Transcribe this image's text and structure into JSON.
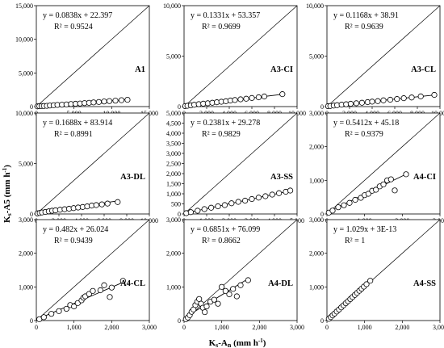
{
  "figure": {
    "ylabel_main": "K",
    "ylabel_sub": "s",
    "ylabel_rest": "-A5 (mm h",
    "ylabel_sup": "-1",
    "ylabel_end": ")",
    "xlabel_main": "K",
    "xlabel_sub": "s",
    "xlabel_mid": "-A",
    "xlabel_sub2": "n",
    "xlabel_rest": " (mm h",
    "xlabel_sup": "-1",
    "xlabel_end": ")"
  },
  "chart_data": [
    {
      "type": "scatter",
      "label": "A1",
      "equation": "y = 0.0838x + 22.397",
      "r2": "R² = 0.9524",
      "slope": 0.0838,
      "intercept": 22.397,
      "xlim": [
        0,
        15000
      ],
      "ylim": [
        0,
        15000
      ],
      "xticks": [
        "0",
        "5,000",
        "10,000",
        "15,000"
      ],
      "yticks": [
        "0",
        "5,000",
        "10,000",
        "15,000"
      ],
      "points": [
        [
          150,
          30
        ],
        [
          400,
          60
        ],
        [
          700,
          80
        ],
        [
          1000,
          90
        ],
        [
          1400,
          110
        ],
        [
          1800,
          160
        ],
        [
          2300,
          200
        ],
        [
          2800,
          250
        ],
        [
          3400,
          280
        ],
        [
          4000,
          320
        ],
        [
          4600,
          380
        ],
        [
          5200,
          420
        ],
        [
          5800,
          460
        ],
        [
          6400,
          520
        ],
        [
          7000,
          560
        ],
        [
          7600,
          620
        ],
        [
          8300,
          680
        ],
        [
          9000,
          760
        ],
        [
          9700,
          820
        ],
        [
          10500,
          880
        ],
        [
          11300,
          950
        ],
        [
          12100,
          1010
        ]
      ]
    },
    {
      "type": "scatter",
      "label": "A3-CI",
      "equation": "y = 0.1331x + 53.357",
      "r2": "R² = 0.9699",
      "slope": 0.1331,
      "intercept": 53.357,
      "xlim": [
        0,
        10000
      ],
      "ylim": [
        0,
        10000
      ],
      "xticks": [
        "0",
        "2,000",
        "4,000",
        "6,000",
        "8,000",
        "10,000"
      ],
      "yticks": [
        "0",
        "5,000",
        "10,000"
      ],
      "points": [
        [
          100,
          50
        ],
        [
          300,
          80
        ],
        [
          600,
          120
        ],
        [
          900,
          180
        ],
        [
          1300,
          240
        ],
        [
          1700,
          290
        ],
        [
          2100,
          330
        ],
        [
          2500,
          380
        ],
        [
          2900,
          430
        ],
        [
          3300,
          480
        ],
        [
          3700,
          530
        ],
        [
          4100,
          600
        ],
        [
          4500,
          650
        ],
        [
          5000,
          720
        ],
        [
          5500,
          780
        ],
        [
          6000,
          850
        ],
        [
          6600,
          920
        ],
        [
          7100,
          1000
        ],
        [
          8700,
          1230
        ]
      ]
    },
    {
      "type": "scatter",
      "label": "A3-CL",
      "equation": "y = 0.1168x + 38.91",
      "r2": "R² = 0.9639",
      "slope": 0.1168,
      "intercept": 38.91,
      "xlim": [
        0,
        10000
      ],
      "ylim": [
        0,
        10000
      ],
      "xticks": [
        "0",
        "2,000",
        "4,000",
        "6,000",
        "8,000",
        "10,000"
      ],
      "yticks": [
        "0",
        "5,000",
        "10,000"
      ],
      "points": [
        [
          100,
          40
        ],
        [
          300,
          60
        ],
        [
          600,
          100
        ],
        [
          900,
          140
        ],
        [
          1300,
          190
        ],
        [
          1700,
          230
        ],
        [
          2100,
          280
        ],
        [
          2600,
          330
        ],
        [
          3100,
          380
        ],
        [
          3600,
          440
        ],
        [
          4000,
          490
        ],
        [
          4500,
          540
        ],
        [
          5000,
          620
        ],
        [
          5600,
          680
        ],
        [
          6200,
          750
        ],
        [
          6800,
          830
        ],
        [
          7500,
          900
        ],
        [
          8300,
          1010
        ],
        [
          9500,
          1160
        ]
      ]
    },
    {
      "type": "scatter",
      "label": "A3-DL",
      "equation": "y = 0.1688x + 83.914",
      "r2": "R² = 0.8991",
      "slope": 0.1688,
      "intercept": 83.914,
      "xlim": [
        0,
        10000
      ],
      "ylim": [
        0,
        10000
      ],
      "xticks": [
        "0",
        "2,000",
        "4,000",
        "6,000",
        "8,000",
        "10,000"
      ],
      "yticks": [
        "0",
        "5,000",
        "10,000"
      ],
      "points": [
        [
          100,
          60
        ],
        [
          300,
          100
        ],
        [
          500,
          150
        ],
        [
          800,
          200
        ],
        [
          1100,
          260
        ],
        [
          1400,
          320
        ],
        [
          1700,
          360
        ],
        [
          2100,
          420
        ],
        [
          2500,
          470
        ],
        [
          2900,
          520
        ],
        [
          3300,
          580
        ],
        [
          3700,
          640
        ],
        [
          4100,
          690
        ],
        [
          4500,
          750
        ],
        [
          4900,
          830
        ],
        [
          5300,
          880
        ],
        [
          5800,
          950
        ],
        [
          6300,
          1030
        ],
        [
          7200,
          1180
        ]
      ]
    },
    {
      "type": "scatter",
      "label": "A3-SS",
      "equation": "y = 0.2381x + 29.278",
      "r2": "R² = 0.9829",
      "slope": 0.2381,
      "intercept": 29.278,
      "xlim": [
        0,
        5000
      ],
      "ylim": [
        0,
        5000
      ],
      "xticks": [
        "0",
        "1,000",
        "2,000",
        "3,000",
        "4,000",
        "5,000"
      ],
      "yticks": [
        "0",
        "500",
        "1,000",
        "1,500",
        "2,000",
        "2,500",
        "3,000",
        "3,500",
        "4,000",
        "4,500",
        "5,000"
      ],
      "points": [
        [
          100,
          40
        ],
        [
          300,
          90
        ],
        [
          600,
          160
        ],
        [
          900,
          240
        ],
        [
          1200,
          310
        ],
        [
          1500,
          380
        ],
        [
          1800,
          440
        ],
        [
          2100,
          530
        ],
        [
          2400,
          600
        ],
        [
          2700,
          660
        ],
        [
          3000,
          740
        ],
        [
          3300,
          810
        ],
        [
          3600,
          880
        ],
        [
          3900,
          960
        ],
        [
          4200,
          1030
        ],
        [
          4500,
          1100
        ],
        [
          4700,
          1160
        ]
      ]
    },
    {
      "type": "scatter",
      "label": "A4-CI",
      "equation": "y = 0.5412x + 45.18",
      "r2": "R² = 0.9379",
      "slope": 0.5412,
      "intercept": 45.18,
      "xlim": [
        0,
        3000
      ],
      "ylim": [
        0,
        3000
      ],
      "xticks": [
        "0",
        "1,000",
        "2,000",
        "3,000"
      ],
      "yticks": [
        "0",
        "1,000",
        "2,000",
        "3,000"
      ],
      "points": [
        [
          50,
          40
        ],
        [
          150,
          100
        ],
        [
          300,
          200
        ],
        [
          450,
          260
        ],
        [
          600,
          330
        ],
        [
          750,
          420
        ],
        [
          900,
          480
        ],
        [
          1000,
          560
        ],
        [
          1100,
          600
        ],
        [
          1200,
          690
        ],
        [
          1300,
          720
        ],
        [
          1400,
          820
        ],
        [
          1500,
          880
        ],
        [
          1600,
          1000
        ],
        [
          1700,
          1030
        ],
        [
          1800,
          700
        ],
        [
          2100,
          1180
        ]
      ]
    },
    {
      "type": "scatter",
      "label": "A4-CL",
      "equation": "y = 0.482x + 26.024",
      "r2": "R² = 0.9439",
      "slope": 0.482,
      "intercept": 26.024,
      "xlim": [
        0,
        3000
      ],
      "ylim": [
        0,
        3000
      ],
      "xticks": [
        "0",
        "1,000",
        "2,000",
        "3,000"
      ],
      "yticks": [
        "0",
        "1,000",
        "2,000",
        "3,000"
      ],
      "points": [
        [
          80,
          40
        ],
        [
          200,
          100
        ],
        [
          400,
          200
        ],
        [
          600,
          280
        ],
        [
          800,
          350
        ],
        [
          900,
          460
        ],
        [
          1000,
          420
        ],
        [
          1100,
          520
        ],
        [
          1200,
          600
        ],
        [
          1250,
          680
        ],
        [
          1300,
          720
        ],
        [
          1400,
          790
        ],
        [
          1500,
          880
        ],
        [
          1700,
          900
        ],
        [
          1800,
          1050
        ],
        [
          1950,
          700
        ],
        [
          2000,
          980
        ],
        [
          2300,
          1180
        ]
      ]
    },
    {
      "type": "scatter",
      "label": "A4-DL",
      "equation": "y = 0.6851x + 76.099",
      "r2": "R² = 0.8662",
      "slope": 0.6851,
      "intercept": 76.099,
      "xlim": [
        0,
        3000
      ],
      "ylim": [
        0,
        3000
      ],
      "xticks": [
        "0",
        "1,000",
        "2,000",
        "3,000"
      ],
      "yticks": [
        "0",
        "1,000",
        "2,000",
        "3,000"
      ],
      "points": [
        [
          50,
          40
        ],
        [
          100,
          90
        ],
        [
          150,
          160
        ],
        [
          200,
          260
        ],
        [
          250,
          330
        ],
        [
          300,
          460
        ],
        [
          350,
          560
        ],
        [
          400,
          640
        ],
        [
          450,
          500
        ],
        [
          500,
          380
        ],
        [
          550,
          250
        ],
        [
          600,
          420
        ],
        [
          700,
          560
        ],
        [
          800,
          620
        ],
        [
          900,
          500
        ],
        [
          1000,
          1000
        ],
        [
          1100,
          880
        ],
        [
          1200,
          780
        ],
        [
          1300,
          940
        ],
        [
          1400,
          720
        ],
        [
          1500,
          1050
        ],
        [
          1700,
          1200
        ]
      ]
    },
    {
      "type": "scatter",
      "label": "A4-SS",
      "equation": "y = 1.029x + 3E-13",
      "r2": "R² = 1",
      "slope": 1.029,
      "intercept": 0,
      "xlim": [
        0,
        3000
      ],
      "ylim": [
        0,
        3000
      ],
      "xticks": [
        "0",
        "1,000",
        "2,000",
        "3,000"
      ],
      "yticks": [
        "0",
        "1,000",
        "2,000",
        "3,000"
      ],
      "points": [
        [
          50,
          51
        ],
        [
          100,
          103
        ],
        [
          150,
          154
        ],
        [
          200,
          206
        ],
        [
          260,
          268
        ],
        [
          320,
          329
        ],
        [
          380,
          391
        ],
        [
          440,
          453
        ],
        [
          500,
          515
        ],
        [
          560,
          576
        ],
        [
          620,
          638
        ],
        [
          680,
          700
        ],
        [
          740,
          761
        ],
        [
          800,
          823
        ],
        [
          860,
          885
        ],
        [
          920,
          947
        ],
        [
          980,
          1008
        ],
        [
          1050,
          1080
        ],
        [
          1150,
          1183
        ]
      ]
    }
  ]
}
